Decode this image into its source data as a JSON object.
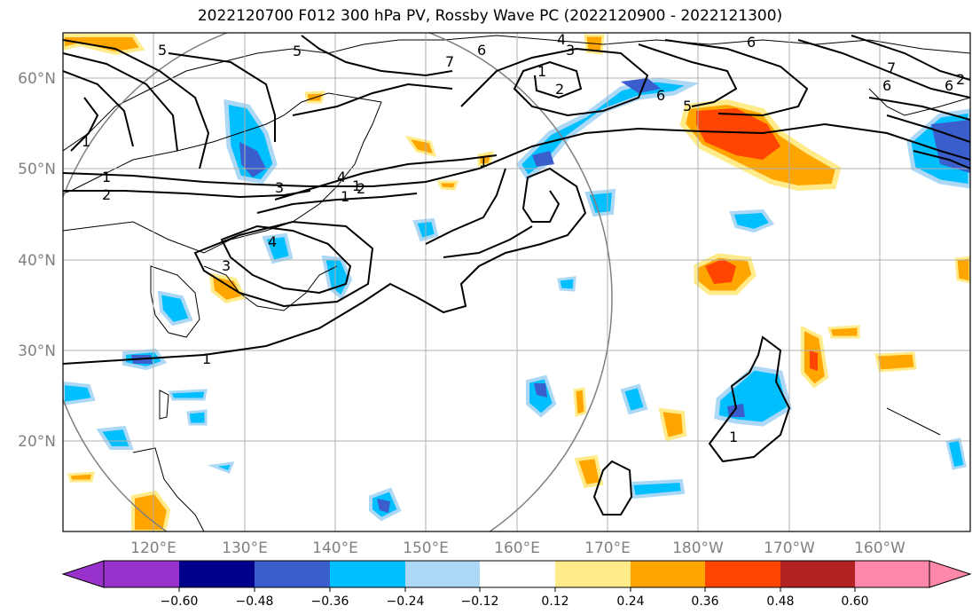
{
  "title": "2022120700 F012 300 hPa PV, Rossby Wave PC (2022120900 - 2022121300)",
  "map": {
    "lat_labels": [
      "60°N",
      "50°N",
      "40°N",
      "30°N",
      "20°N"
    ],
    "lon_labels": [
      "120°E",
      "130°E",
      "140°E",
      "150°E",
      "160°E",
      "170°E",
      "180°W",
      "170°W",
      "160°W"
    ],
    "contour_labels": [
      "5",
      "5",
      "6",
      "4",
      "3",
      "7",
      "6",
      "1",
      "2",
      "6",
      "5",
      "6",
      "7",
      "6",
      "1",
      "1",
      "2",
      "3",
      "4",
      "1",
      "1",
      "2",
      "4",
      "3",
      "1",
      "1",
      "1",
      "2"
    ],
    "colors": {
      "land": "#000000",
      "grid": "#b0b0b0",
      "circle": "#808080",
      "pv_contour": "#000000"
    }
  },
  "colorbar": {
    "tick_labels": [
      "−0.60",
      "−0.48",
      "−0.36",
      "−0.24",
      "−0.12",
      "0.12",
      "0.24",
      "0.36",
      "0.48",
      "0.60"
    ],
    "colors": [
      "#9932cc",
      "#00008b",
      "#3a5fcd",
      "#00bfff",
      "#add8f5",
      "#ffffff",
      "#ffeb8a",
      "#ffa500",
      "#ff4500",
      "#b22222",
      "#ff88aa"
    ]
  }
}
